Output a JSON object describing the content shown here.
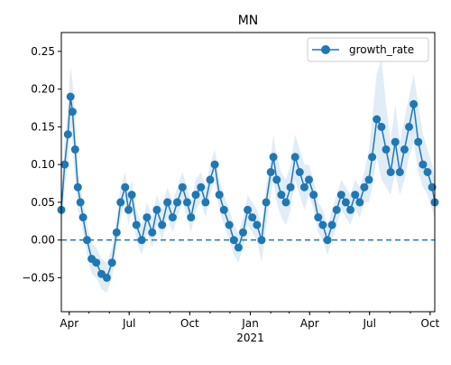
{
  "chart_data": {
    "type": "line",
    "title": "MN",
    "xlabel": "",
    "ylabel": "",
    "x_ticks_major": [
      "Apr",
      "Jul",
      "Oct",
      "Jan",
      "Apr",
      "Jul",
      "Oct"
    ],
    "x_ticks_major_dates": [
      "2020-04-01",
      "2020-07-01",
      "2020-10-01",
      "2021-01-01",
      "2021-04-01",
      "2021-07-01",
      "2021-10-01"
    ],
    "x_sub_label": "2021",
    "x_range": [
      "2020-03-20",
      "2021-10-08"
    ],
    "ylim": [
      -0.095,
      0.275
    ],
    "y_ticks": [
      "−0.05",
      "0.00",
      "0.05",
      "0.10",
      "0.15",
      "0.20",
      "0.25"
    ],
    "y_tick_values": [
      -0.05,
      0.0,
      0.05,
      0.1,
      0.15,
      0.2,
      0.25
    ],
    "reference_line": {
      "y": 0.0,
      "style": "dashed",
      "color": "#1f77b4"
    },
    "legend": {
      "position": "top-right",
      "entries": [
        "growth_rate"
      ]
    },
    "grid": false,
    "colors": {
      "series": "#1f77b4",
      "band": "#c6dcef"
    },
    "series": [
      {
        "name": "growth_rate",
        "x": [
          "2020-03-20",
          "2020-03-25",
          "2020-03-30",
          "2020-04-03",
          "2020-04-06",
          "2020-04-10",
          "2020-04-14",
          "2020-04-18",
          "2020-04-22",
          "2020-04-28",
          "2020-05-05",
          "2020-05-12",
          "2020-05-20",
          "2020-05-28",
          "2020-06-05",
          "2020-06-12",
          "2020-06-18",
          "2020-06-25",
          "2020-06-30",
          "2020-07-05",
          "2020-07-12",
          "2020-07-20",
          "2020-07-28",
          "2020-08-05",
          "2020-08-12",
          "2020-08-20",
          "2020-08-28",
          "2020-09-05",
          "2020-09-12",
          "2020-09-20",
          "2020-09-27",
          "2020-10-03",
          "2020-10-10",
          "2020-10-18",
          "2020-10-25",
          "2020-11-01",
          "2020-11-08",
          "2020-11-15",
          "2020-11-22",
          "2020-11-30",
          "2020-12-07",
          "2020-12-14",
          "2020-12-21",
          "2020-12-28",
          "2021-01-04",
          "2021-01-11",
          "2021-01-18",
          "2021-01-25",
          "2021-02-01",
          "2021-02-05",
          "2021-02-10",
          "2021-02-17",
          "2021-02-24",
          "2021-03-03",
          "2021-03-10",
          "2021-03-17",
          "2021-03-24",
          "2021-03-31",
          "2021-04-07",
          "2021-04-14",
          "2021-04-21",
          "2021-04-28",
          "2021-05-05",
          "2021-05-12",
          "2021-05-19",
          "2021-05-26",
          "2021-06-02",
          "2021-06-09",
          "2021-06-16",
          "2021-06-23",
          "2021-06-30",
          "2021-07-05",
          "2021-07-12",
          "2021-07-19",
          "2021-07-26",
          "2021-08-02",
          "2021-08-09",
          "2021-08-16",
          "2021-08-23",
          "2021-08-30",
          "2021-09-06",
          "2021-09-13",
          "2021-09-20",
          "2021-09-27",
          "2021-10-04",
          "2021-10-08"
        ],
        "values": [
          0.04,
          0.1,
          0.14,
          0.19,
          0.17,
          0.12,
          0.07,
          0.05,
          0.03,
          0.0,
          -0.025,
          -0.03,
          -0.045,
          -0.05,
          -0.03,
          0.01,
          0.05,
          0.07,
          0.04,
          0.06,
          0.02,
          0.0,
          0.03,
          0.01,
          0.04,
          0.02,
          0.05,
          0.03,
          0.05,
          0.07,
          0.05,
          0.03,
          0.06,
          0.07,
          0.05,
          0.08,
          0.1,
          0.06,
          0.04,
          0.02,
          0.0,
          -0.01,
          0.01,
          0.04,
          0.03,
          0.02,
          0.0,
          0.05,
          0.09,
          0.11,
          0.08,
          0.06,
          0.05,
          0.07,
          0.11,
          0.09,
          0.07,
          0.08,
          0.06,
          0.03,
          0.02,
          0.0,
          0.02,
          0.04,
          0.06,
          0.05,
          0.04,
          0.06,
          0.05,
          0.07,
          0.08,
          0.11,
          0.16,
          0.15,
          0.12,
          0.09,
          0.13,
          0.09,
          0.12,
          0.15,
          0.18,
          0.13,
          0.1,
          0.09,
          0.07,
          0.05
        ],
        "band_upper": [
          0.06,
          0.13,
          0.18,
          0.23,
          0.21,
          0.16,
          0.1,
          0.07,
          0.05,
          0.02,
          -0.005,
          -0.01,
          -0.025,
          -0.03,
          -0.01,
          0.03,
          0.07,
          0.09,
          0.06,
          0.08,
          0.04,
          0.02,
          0.05,
          0.03,
          0.06,
          0.04,
          0.07,
          0.05,
          0.07,
          0.09,
          0.07,
          0.05,
          0.08,
          0.09,
          0.07,
          0.1,
          0.12,
          0.08,
          0.06,
          0.04,
          0.02,
          0.01,
          0.03,
          0.06,
          0.05,
          0.04,
          0.02,
          0.07,
          0.11,
          0.14,
          0.11,
          0.09,
          0.08,
          0.1,
          0.14,
          0.12,
          0.1,
          0.1,
          0.08,
          0.05,
          0.04,
          0.02,
          0.04,
          0.06,
          0.08,
          0.07,
          0.06,
          0.08,
          0.07,
          0.09,
          0.12,
          0.16,
          0.22,
          0.24,
          0.18,
          0.13,
          0.18,
          0.13,
          0.16,
          0.19,
          0.22,
          0.18,
          0.14,
          0.12,
          0.1,
          0.08
        ],
        "band_lower": [
          0.02,
          0.07,
          0.1,
          0.15,
          0.13,
          0.08,
          0.04,
          0.03,
          0.01,
          -0.02,
          -0.045,
          -0.05,
          -0.065,
          -0.07,
          -0.05,
          -0.01,
          0.03,
          0.05,
          0.02,
          0.04,
          0.0,
          -0.02,
          0.01,
          -0.01,
          0.02,
          0.0,
          0.03,
          0.01,
          0.03,
          0.05,
          0.03,
          0.01,
          0.04,
          0.05,
          0.03,
          0.06,
          0.08,
          0.04,
          0.02,
          0.0,
          -0.02,
          -0.03,
          -0.01,
          0.02,
          0.01,
          0.0,
          -0.03,
          0.02,
          0.06,
          0.08,
          0.05,
          0.03,
          0.02,
          0.04,
          0.08,
          0.06,
          0.04,
          0.06,
          0.04,
          0.01,
          0.0,
          -0.02,
          0.0,
          0.02,
          0.04,
          0.03,
          0.02,
          0.04,
          0.03,
          0.05,
          0.05,
          0.07,
          0.11,
          0.08,
          0.07,
          0.06,
          0.09,
          0.06,
          0.08,
          0.11,
          0.13,
          0.09,
          0.07,
          0.06,
          0.04,
          0.03
        ]
      }
    ]
  }
}
